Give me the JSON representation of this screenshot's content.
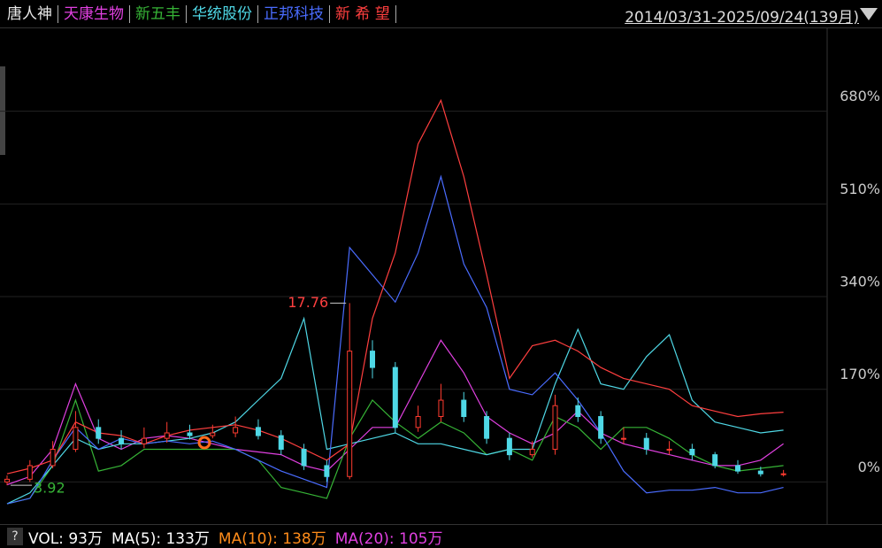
{
  "chart_data": {
    "type": "line",
    "date_range": "2014/03/31-2025/09/24(139月)",
    "x": [
      0,
      4,
      8,
      12,
      16,
      20,
      24,
      28,
      32,
      36,
      40,
      44,
      48,
      52,
      56,
      60,
      64,
      68,
      72,
      76,
      80,
      84,
      88,
      92,
      96,
      100,
      104,
      108,
      112,
      116,
      120,
      124,
      128,
      132,
      136
    ],
    "xlim": [
      0,
      139
    ],
    "ylim": [
      -74,
      832
    ],
    "yticks": [
      {
        "value": 680,
        "label": "680%"
      },
      {
        "value": 510,
        "label": "510%"
      },
      {
        "value": 340,
        "label": "340%"
      },
      {
        "value": 170,
        "label": "170%"
      },
      {
        "value": 0,
        "label": "0%"
      }
    ],
    "grid": true,
    "candlestick": {
      "name": "唐人神",
      "color": "#e8e8e8",
      "color_up": "#ff3b30",
      "color_down": "#4fd8e6",
      "open": [
        0,
        5,
        30,
        60,
        100,
        80,
        70,
        80,
        90,
        85,
        90,
        100,
        85,
        60,
        30,
        10,
        240,
        210,
        100,
        120,
        150,
        120,
        80,
        50,
        60,
        140,
        120,
        80,
        80,
        60,
        60,
        50,
        30,
        20,
        15
      ],
      "high": [
        12,
        40,
        75,
        130,
        115,
        95,
        100,
        110,
        105,
        105,
        120,
        115,
        95,
        70,
        40,
        328,
        260,
        220,
        140,
        180,
        165,
        130,
        90,
        75,
        160,
        155,
        130,
        100,
        90,
        75,
        70,
        55,
        40,
        28,
        22
      ],
      "low": [
        -6,
        0,
        25,
        55,
        70,
        60,
        62,
        72,
        78,
        80,
        82,
        78,
        50,
        22,
        0,
        5,
        190,
        90,
        92,
        110,
        110,
        70,
        40,
        45,
        50,
        110,
        70,
        70,
        50,
        50,
        40,
        25,
        15,
        10,
        10
      ],
      "close": [
        5,
        30,
        60,
        100,
        80,
        70,
        80,
        90,
        85,
        90,
        100,
        85,
        60,
        30,
        10,
        240,
        210,
        100,
        120,
        150,
        120,
        80,
        50,
        60,
        140,
        120,
        80,
        80,
        60,
        60,
        50,
        30,
        20,
        15,
        15
      ],
      "max_label": "17.76",
      "min_label": "3.92"
    },
    "series": [
      {
        "name": "天康生物",
        "color": "#e040e0",
        "values": [
          -5,
          10,
          60,
          180,
          80,
          60,
          80,
          85,
          80,
          70,
          60,
          55,
          50,
          30,
          20,
          60,
          100,
          100,
          180,
          260,
          200,
          120,
          90,
          70,
          90,
          130,
          90,
          70,
          60,
          50,
          40,
          30,
          30,
          40,
          70
        ]
      },
      {
        "name": "新五丰",
        "color": "#36b336",
        "values": [
          -40,
          -30,
          30,
          150,
          20,
          30,
          60,
          60,
          60,
          60,
          60,
          40,
          -10,
          -20,
          -30,
          80,
          150,
          110,
          80,
          110,
          90,
          50,
          60,
          40,
          120,
          100,
          60,
          100,
          100,
          80,
          50,
          30,
          20,
          25,
          30
        ]
      },
      {
        "name": "华统股份",
        "color": "#4fd8e6",
        "values": [
          -40,
          -20,
          30,
          80,
          60,
          70,
          70,
          75,
          80,
          90,
          110,
          150,
          190,
          300,
          60,
          70,
          80,
          90,
          70,
          70,
          60,
          50,
          60,
          60,
          180,
          280,
          180,
          170,
          230,
          270,
          150,
          110,
          100,
          90,
          95
        ]
      },
      {
        "name": "正邦科技",
        "color": "#4a6cff",
        "values": [
          -40,
          -30,
          40,
          100,
          60,
          80,
          70,
          75,
          70,
          75,
          60,
          40,
          20,
          5,
          -10,
          430,
          380,
          330,
          420,
          560,
          400,
          320,
          170,
          160,
          200,
          150,
          90,
          20,
          -20,
          -15,
          -15,
          -10,
          -20,
          -20,
          -10
        ]
      },
      {
        "name": "新 希 望",
        "color": "#ff3f3f",
        "values": [
          15,
          25,
          40,
          110,
          90,
          85,
          70,
          85,
          95,
          100,
          105,
          95,
          80,
          60,
          40,
          70,
          300,
          420,
          620,
          700,
          560,
          380,
          190,
          250,
          260,
          240,
          210,
          190,
          180,
          170,
          140,
          130,
          120,
          125,
          128
        ]
      }
    ],
    "footer": {
      "help": "?",
      "items": [
        {
          "text": "VOL: 93万",
          "color": "#ffffff"
        },
        {
          "text": "MA(5): 133万",
          "color": "#ffffff"
        },
        {
          "text": "MA(10): 138万",
          "color": "#ff8c1a"
        },
        {
          "text": "MA(20): 105万",
          "color": "#e040e0"
        }
      ]
    }
  }
}
